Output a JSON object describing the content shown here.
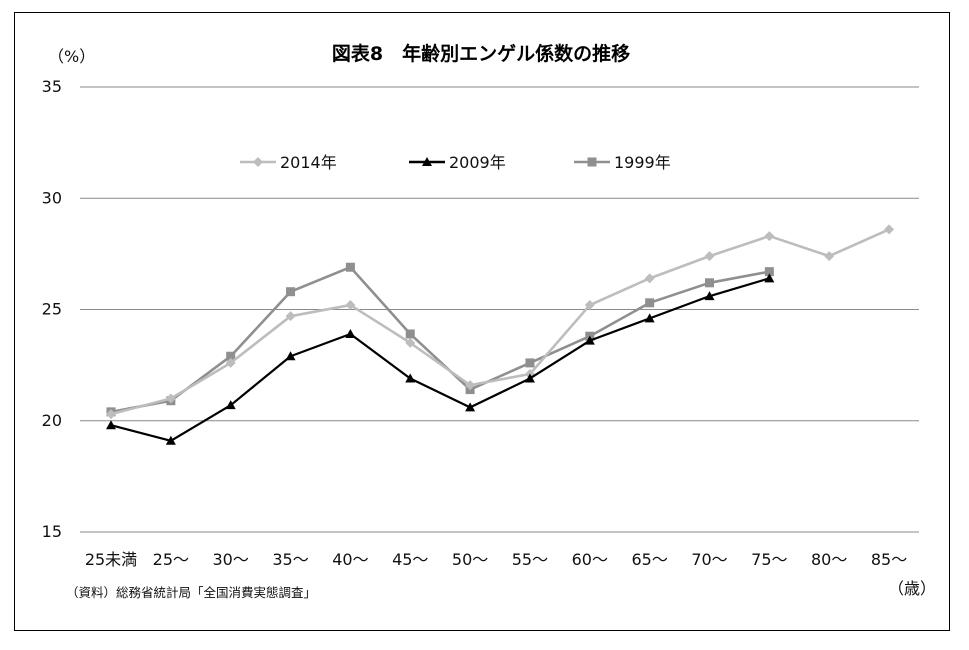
{
  "chart_data": {
    "type": "line",
    "title": "図表8　年齢別エンゲル係数の推移",
    "ylabel": "（%）",
    "xlabel": "（歳）",
    "source": "（資料）総務省統計局「全国消費実態調査」",
    "categories": [
      "25未満",
      "25～",
      "30～",
      "35～",
      "40～",
      "45～",
      "50～",
      "55～",
      "60～",
      "65～",
      "70～",
      "75～",
      "80～",
      "85～"
    ],
    "ylim": [
      15,
      35
    ],
    "yticks": [
      15,
      20,
      25,
      30,
      35
    ],
    "grid": true,
    "legend_position": "top-center",
    "series": [
      {
        "name": "2014年",
        "color": "#bdbdbd",
        "marker": "diamond",
        "values": [
          20.3,
          21.0,
          22.6,
          24.7,
          25.2,
          23.5,
          21.6,
          22.1,
          25.2,
          26.4,
          27.4,
          28.3,
          27.4,
          28.6
        ]
      },
      {
        "name": "2009年",
        "color": "#000000",
        "marker": "triangle",
        "values": [
          19.8,
          19.1,
          20.7,
          22.9,
          23.9,
          21.9,
          20.6,
          21.9,
          23.6,
          24.6,
          25.6,
          26.4,
          null,
          null
        ]
      },
      {
        "name": "1999年",
        "color": "#8f8f8f",
        "marker": "square",
        "values": [
          20.4,
          20.9,
          22.9,
          25.8,
          26.9,
          23.9,
          21.4,
          22.6,
          23.8,
          25.3,
          26.2,
          26.7,
          null,
          null
        ]
      }
    ]
  }
}
